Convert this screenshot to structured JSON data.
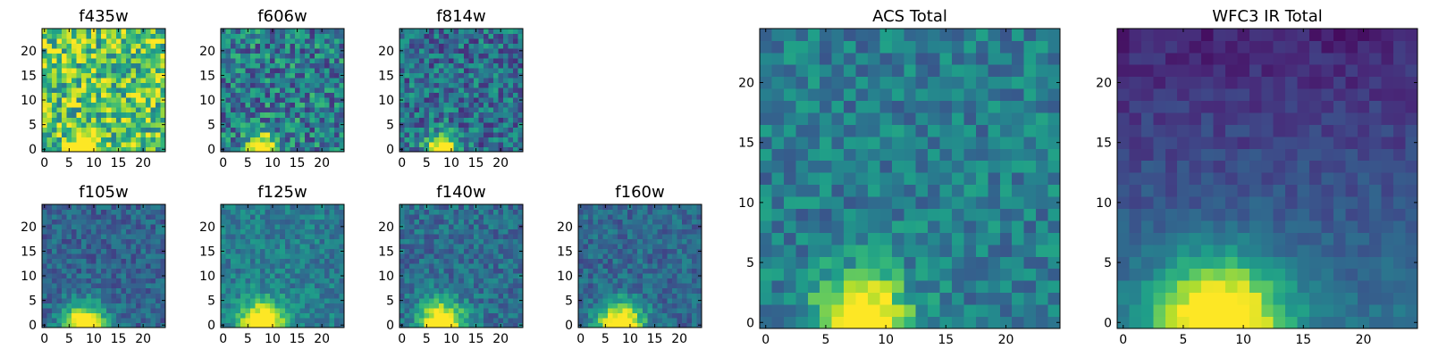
{
  "chart_data": [
    {
      "type": "heatmap",
      "title": "f435w",
      "xticks": [
        "0",
        "5",
        "10",
        "15",
        "20"
      ],
      "yticks": [
        "0",
        "5",
        "10",
        "15",
        "20"
      ],
      "xlim": [
        -0.5,
        24.5
      ],
      "ylim": [
        -0.5,
        24.5
      ],
      "source_x": 8,
      "source_y": 0,
      "source_sigma": 2.0,
      "noise": 0.32,
      "background": 0.72,
      "seed": 11
    },
    {
      "type": "heatmap",
      "title": "f606w",
      "xticks": [
        "0",
        "5",
        "10",
        "15",
        "20"
      ],
      "yticks": [
        "0",
        "5",
        "10",
        "15",
        "20"
      ],
      "xlim": [
        -0.5,
        24.5
      ],
      "ylim": [
        -0.5,
        24.5
      ],
      "source_x": 8,
      "source_y": 0,
      "source_sigma": 2.1,
      "noise": 0.28,
      "background": 0.42,
      "seed": 23
    },
    {
      "type": "heatmap",
      "title": "f814w",
      "xticks": [
        "0",
        "5",
        "10",
        "15",
        "20"
      ],
      "yticks": [
        "0",
        "5",
        "10",
        "15",
        "20"
      ],
      "xlim": [
        -0.5,
        24.5
      ],
      "ylim": [
        -0.5,
        24.5
      ],
      "source_x": 8,
      "source_y": 0,
      "source_sigma": 2.2,
      "noise": 0.24,
      "background": 0.36,
      "seed": 37
    },
    {
      "type": "heatmap",
      "title": "f105w",
      "xticks": [
        "0",
        "5",
        "10",
        "15",
        "20"
      ],
      "yticks": [
        "0",
        "5",
        "10",
        "15",
        "20"
      ],
      "xlim": [
        -0.5,
        24.5
      ],
      "ylim": [
        -0.5,
        24.5
      ],
      "source_x": 8,
      "source_y": 0,
      "source_sigma": 3.0,
      "noise": 0.14,
      "background": 0.32,
      "seed": 41
    },
    {
      "type": "heatmap",
      "title": "f125w",
      "xticks": [
        "0",
        "5",
        "10",
        "15",
        "20"
      ],
      "yticks": [
        "0",
        "5",
        "10",
        "15",
        "20"
      ],
      "xlim": [
        -0.5,
        24.5
      ],
      "ylim": [
        -0.5,
        24.5
      ],
      "source_x": 8,
      "source_y": 0,
      "source_sigma": 3.2,
      "noise": 0.14,
      "background": 0.42,
      "seed": 53
    },
    {
      "type": "heatmap",
      "title": "f140w",
      "xticks": [
        "0",
        "5",
        "10",
        "15",
        "20"
      ],
      "yticks": [
        "0",
        "5",
        "10",
        "15",
        "20"
      ],
      "xlim": [
        -0.5,
        24.5
      ],
      "ylim": [
        -0.5,
        24.5
      ],
      "source_x": 8,
      "source_y": 0,
      "source_sigma": 3.2,
      "noise": 0.15,
      "background": 0.36,
      "seed": 67
    },
    {
      "type": "heatmap",
      "title": "f160w",
      "xticks": [
        "0",
        "5",
        "10",
        "15",
        "20"
      ],
      "yticks": [
        "0",
        "5",
        "10",
        "15",
        "20"
      ],
      "xlim": [
        -0.5,
        24.5
      ],
      "ylim": [
        -0.5,
        24.5
      ],
      "source_x": 8,
      "source_y": 0,
      "source_sigma": 3.2,
      "noise": 0.14,
      "background": 0.34,
      "seed": 79
    },
    {
      "type": "heatmap",
      "title": "ACS Total",
      "xticks": [
        "0",
        "5",
        "10",
        "15",
        "20"
      ],
      "yticks": [
        "0",
        "5",
        "10",
        "15",
        "20"
      ],
      "xlim": [
        -0.5,
        24.5
      ],
      "ylim": [
        -0.5,
        24.5
      ],
      "source_x": 8,
      "source_y": 0,
      "source_sigma": 2.6,
      "noise": 0.16,
      "background": 0.42,
      "seed": 97
    },
    {
      "type": "heatmap",
      "title": "WFC3 IR Total",
      "xticks": [
        "0",
        "5",
        "10",
        "15",
        "20"
      ],
      "yticks": [
        "0",
        "5",
        "10",
        "15",
        "20"
      ],
      "xlim": [
        -0.5,
        24.5
      ],
      "ylim": [
        -0.5,
        24.5
      ],
      "source_x": 8,
      "source_y": 0,
      "source_sigma": 3.6,
      "noise": 0.07,
      "background": 0.38,
      "gradient": 0.28,
      "seed": 113
    }
  ],
  "colormap": "viridis"
}
